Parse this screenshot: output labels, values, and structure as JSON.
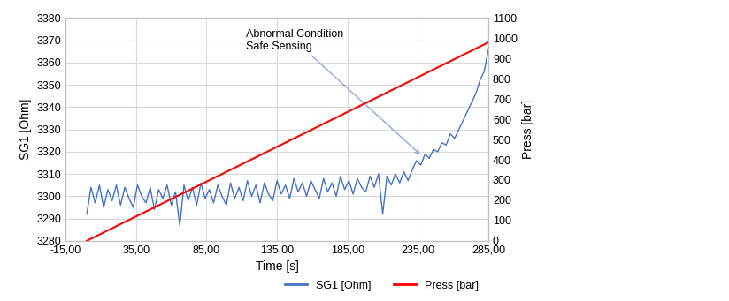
{
  "chart_data": {
    "type": "line",
    "xlabel": "Time [s]",
    "ylabel": "SG1 [Ohm]",
    "y2label": "Press [bar]",
    "xlim": [
      -15,
      285
    ],
    "xticks": [
      {
        "value": -15,
        "label": "-15,00"
      },
      {
        "value": 35,
        "label": "35,00"
      },
      {
        "value": 85,
        "label": "85,00"
      },
      {
        "value": 135,
        "label": "135,00"
      },
      {
        "value": 185,
        "label": "185,00"
      },
      {
        "value": 235,
        "label": "235,00"
      },
      {
        "value": 285,
        "label": "285,00"
      }
    ],
    "ylim": [
      3280,
      3380
    ],
    "yticks": [
      3280,
      3290,
      3300,
      3310,
      3320,
      3330,
      3340,
      3350,
      3360,
      3370,
      3380
    ],
    "y2lim": [
      0,
      1100
    ],
    "y2ticks": [
      0,
      100,
      200,
      300,
      400,
      500,
      600,
      700,
      800,
      900,
      1000,
      1100
    ],
    "grid": true,
    "legend": "lower right",
    "annotations": [
      {
        "text": "Abnormal Condition\nSafe Sensing",
        "xy": [
          238,
          3318
        ],
        "xytext": [
          113,
          3370
        ]
      }
    ],
    "series": [
      {
        "name": "SG1 [Ohm]",
        "color": "#4472c4",
        "axis": "y",
        "x": [
          0,
          3,
          6,
          9,
          12,
          15,
          18,
          21,
          24,
          27,
          30,
          33,
          36,
          39,
          42,
          45,
          48,
          51,
          54,
          57,
          60,
          63,
          66,
          69,
          72,
          75,
          78,
          81,
          84,
          87,
          90,
          93,
          96,
          99,
          102,
          105,
          108,
          111,
          114,
          117,
          120,
          123,
          126,
          129,
          132,
          135,
          138,
          141,
          144,
          147,
          150,
          153,
          156,
          159,
          162,
          165,
          168,
          171,
          174,
          177,
          180,
          183,
          186,
          189,
          192,
          195,
          198,
          201,
          204,
          207,
          210,
          213,
          216,
          219,
          222,
          225,
          228,
          231,
          234,
          237,
          240,
          243,
          246,
          249,
          252,
          255,
          258,
          261,
          264,
          267,
          270,
          273,
          276,
          279,
          282,
          285
        ],
        "values": [
          3292,
          3304,
          3297,
          3305,
          3295,
          3303,
          3298,
          3305,
          3296,
          3304,
          3299,
          3295,
          3305,
          3300,
          3297,
          3304,
          3294,
          3303,
          3299,
          3305,
          3296,
          3302,
          3287,
          3305,
          3298,
          3304,
          3296,
          3306,
          3299,
          3303,
          3297,
          3305,
          3300,
          3296,
          3306,
          3299,
          3304,
          3298,
          3307,
          3300,
          3305,
          3297,
          3306,
          3301,
          3298,
          3307,
          3301,
          3305,
          3299,
          3308,
          3302,
          3306,
          3300,
          3307,
          3303,
          3299,
          3308,
          3302,
          3306,
          3300,
          3309,
          3303,
          3307,
          3301,
          3308,
          3304,
          3302,
          3309,
          3304,
          3310,
          3292,
          3309,
          3305,
          3310,
          3306,
          3311,
          3307,
          3312,
          3316,
          3314,
          3319,
          3317,
          3321,
          3320,
          3324,
          3323,
          3328,
          3326,
          3330,
          3334,
          3338,
          3342,
          3346,
          3352,
          3356,
          3366
        ]
      },
      {
        "name": "Press [bar]",
        "color": "#ff0000",
        "axis": "y2",
        "x": [
          0,
          285
        ],
        "values": [
          0,
          980
        ]
      }
    ]
  }
}
